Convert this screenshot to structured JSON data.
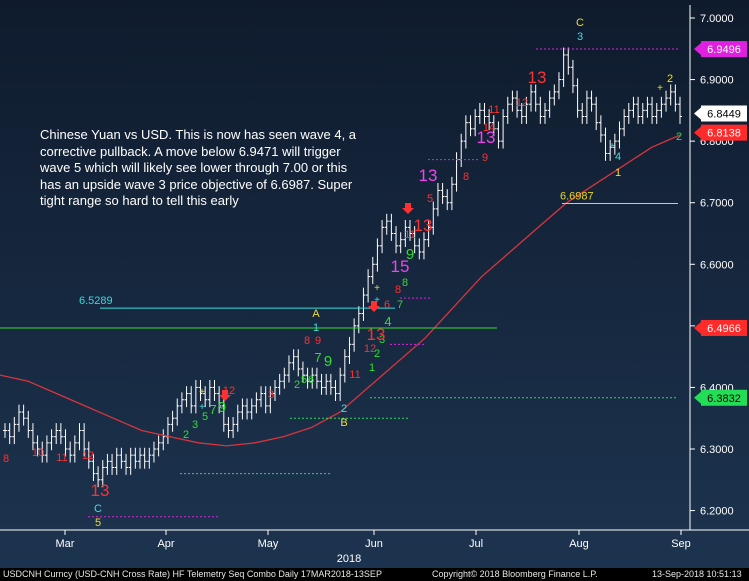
{
  "chart_data": {
    "type": "candlestick",
    "instrument": "USDCNH Curncy (USD-CNH Cross Rate) HF Telemetry Seq Combo",
    "frequency": "Daily",
    "date_range": "17MAR2018-13SEP",
    "year_label": "2018",
    "x_ticks": [
      "Mar",
      "Apr",
      "May",
      "Jun",
      "Jul",
      "Aug",
      "Sep"
    ],
    "y_ticks": [
      "7.0000",
      "6.9000",
      "6.8000",
      "6.7000",
      "6.6000",
      "6.5000",
      "6.4000",
      "6.3000",
      "6.2000"
    ],
    "ylim": [
      6.16,
      7.02
    ],
    "close_series": [
      6.33,
      6.32,
      6.34,
      6.36,
      6.35,
      6.33,
      6.31,
      6.3,
      6.29,
      6.31,
      6.32,
      6.33,
      6.32,
      6.3,
      6.29,
      6.31,
      6.33,
      6.3,
      6.28,
      6.26,
      6.25,
      6.27,
      6.28,
      6.27,
      6.29,
      6.28,
      6.27,
      6.29,
      6.28,
      6.29,
      6.28,
      6.29,
      6.3,
      6.31,
      6.32,
      6.34,
      6.35,
      6.37,
      6.38,
      6.39,
      6.37,
      6.4,
      6.39,
      6.38,
      6.4,
      6.39,
      6.37,
      6.34,
      6.33,
      6.34,
      6.36,
      6.37,
      6.36,
      6.37,
      6.38,
      6.39,
      6.37,
      6.39,
      6.4,
      6.41,
      6.42,
      6.44,
      6.45,
      6.43,
      6.42,
      6.41,
      6.42,
      6.41,
      6.4,
      6.41,
      6.4,
      6.39,
      6.42,
      6.45,
      6.47,
      6.5,
      6.52,
      6.55,
      6.58,
      6.6,
      6.63,
      6.66,
      6.67,
      6.65,
      6.63,
      6.64,
      6.66,
      6.65,
      6.63,
      6.62,
      6.64,
      6.66,
      6.69,
      6.72,
      6.71,
      6.7,
      6.73,
      6.77,
      6.8,
      6.83,
      6.82,
      6.84,
      6.85,
      6.84,
      6.83,
      6.82,
      6.8,
      6.84,
      6.86,
      6.87,
      6.85,
      6.84,
      6.86,
      6.88,
      6.86,
      6.84,
      6.85,
      6.87,
      6.88,
      6.9,
      6.94,
      6.92,
      6.89,
      6.85,
      6.84,
      6.87,
      6.86,
      6.83,
      6.81,
      6.78,
      6.79,
      6.8,
      6.82,
      6.84,
      6.85,
      6.86,
      6.84,
      6.85,
      6.86,
      6.84,
      6.85,
      6.86,
      6.87,
      6.88,
      6.86,
      6.84
    ],
    "series": [
      {
        "name": "Moving average (red line)",
        "color": "#d8343c",
        "values": [
          6.42,
          6.41,
          6.39,
          6.37,
          6.35,
          6.33,
          6.32,
          6.31,
          6.305,
          6.31,
          6.32,
          6.335,
          6.36,
          6.4,
          6.44,
          6.48,
          6.53,
          6.58,
          6.62,
          6.66,
          6.7,
          6.73,
          6.76,
          6.79,
          6.81
        ]
      }
    ],
    "price_labels": [
      {
        "text": "6.9496",
        "value": 6.9496,
        "color": "#e020e0"
      },
      {
        "text": "6.8449",
        "value": 6.8449,
        "color": "#ffffff"
      },
      {
        "text": "6.8138",
        "value": 6.8138,
        "color": "#ff2a2a"
      },
      {
        "text": "6.4966",
        "value": 6.4966,
        "color": "#ff2a2a"
      },
      {
        "text": "6.3832",
        "value": 6.3832,
        "color": "#22dd55"
      }
    ],
    "levels": [
      {
        "text": "6.5289",
        "value": 6.5289,
        "color": "#33dddd"
      },
      {
        "text": "6.6987",
        "value": 6.6987,
        "color": "#e8d820"
      }
    ],
    "wave_labels": [
      "C",
      "3",
      "A",
      "1",
      "2",
      "B",
      "4",
      "1",
      "2",
      "C",
      "5"
    ],
    "annotation": "Chinese Yuan vs USD.  This is now has seen wave 4, a corrective pullback.  A move below 6.9471 will trigger wave 5 which will likely see lower through 7.00 or this has an upside wave 3 price objective of 6.6987.  Super tight range so hard to tell this early",
    "footer_right": "Copyright© 2018 Bloomberg Finance L.P.",
    "timestamp": "13-Sep-2018 10:51:13",
    "colors": {
      "background": "#14233a",
      "candles": "#ffffff",
      "moving_average": "#d8343c",
      "count_red": "#ff3030",
      "count_green": "#33dd33",
      "count_magenta": "#ee44ee",
      "wave_yellow": "#eedd33",
      "wave_cyan": "#44dddd"
    }
  },
  "footer": {
    "left": "USDCNH Curncy (USD-CNH Cross Rate) HF Telemetry Seq Combo  Daily 17MAR2018-13SEP",
    "right": "Copyright© 2018 Bloomberg Finance L.P.",
    "time": "13-Sep-2018 10:51:13"
  }
}
